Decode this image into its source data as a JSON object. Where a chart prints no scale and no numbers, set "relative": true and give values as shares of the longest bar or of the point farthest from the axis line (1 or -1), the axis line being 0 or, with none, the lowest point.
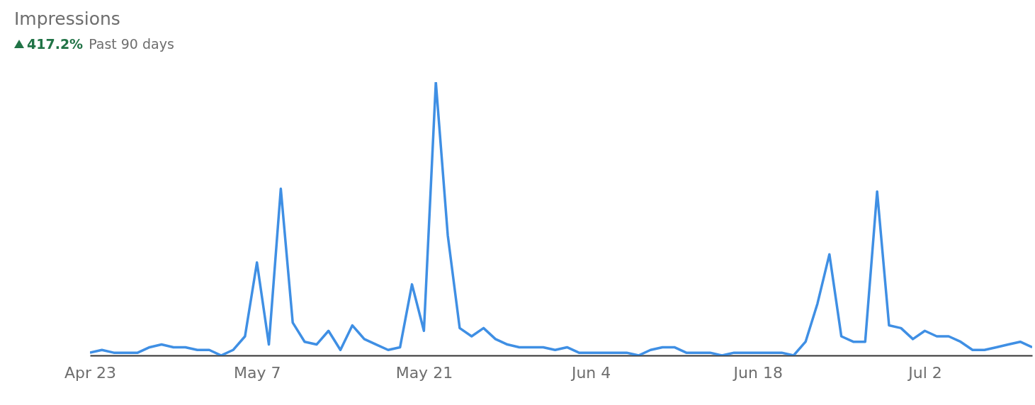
{
  "chart_data": {
    "type": "line",
    "title": "Impressions",
    "annotations": [
      "417.2%",
      "Past 90 days"
    ],
    "relative": true,
    "marker": "none",
    "xlim": [
      "--04-23",
      "--07-11"
    ],
    "xticks": [
      {
        "value": "--04-23",
        "label": "Apr 23"
      },
      {
        "value": "--05-07",
        "label": "May 7"
      },
      {
        "value": "--05-21",
        "label": "May 21"
      },
      {
        "value": "--06-04",
        "label": "Jun 4"
      },
      {
        "value": "--06-18",
        "label": "Jun 18"
      },
      {
        "value": "--07-02",
        "label": "Jul 2"
      }
    ],
    "x": [
      "--04-23",
      "--04-24",
      "--04-25",
      "--04-26",
      "--04-27",
      "--04-28",
      "--04-29",
      "--04-30",
      "--05-01",
      "--05-02",
      "--05-03",
      "--05-04",
      "--05-05",
      "--05-06",
      "--05-07",
      "--05-08",
      "--05-09",
      "--05-10",
      "--05-11",
      "--05-12",
      "--05-13",
      "--05-14",
      "--05-15",
      "--05-16",
      "--05-17",
      "--05-18",
      "--05-19",
      "--05-20",
      "--05-21",
      "--05-22",
      "--05-23",
      "--05-24",
      "--05-25",
      "--05-26",
      "--05-27",
      "--05-28",
      "--05-29",
      "--05-30",
      "--05-31",
      "--06-01",
      "--06-02",
      "--06-03",
      "--06-04",
      "--06-05",
      "--06-06",
      "--06-07",
      "--06-08",
      "--06-09",
      "--06-10",
      "--06-11",
      "--06-12",
      "--06-13",
      "--06-14",
      "--06-15",
      "--06-16",
      "--06-17",
      "--06-18",
      "--06-19",
      "--06-20",
      "--06-21",
      "--06-22",
      "--06-23",
      "--06-24",
      "--06-25",
      "--06-26",
      "--06-27",
      "--06-28",
      "--06-29",
      "--06-30",
      "--07-01",
      "--07-02",
      "--07-03",
      "--07-04",
      "--07-05",
      "--07-06",
      "--07-07",
      "--07-08",
      "--07-09",
      "--07-10",
      "--07-11"
    ],
    "series": [
      {
        "color": "#3f8fe4",
        "values": [
          0.01,
          0.02,
          0.01,
          0.01,
          0.01,
          0.03,
          0.04,
          0.03,
          0.03,
          0.02,
          0.02,
          0.0,
          0.02,
          0.07,
          0.34,
          0.04,
          0.61,
          0.12,
          0.05,
          0.04,
          0.09,
          0.02,
          0.11,
          0.06,
          0.04,
          0.02,
          0.03,
          0.26,
          0.09,
          1.0,
          0.44,
          0.1,
          0.07,
          0.1,
          0.06,
          0.04,
          0.03,
          0.03,
          0.03,
          0.02,
          0.03,
          0.01,
          0.01,
          0.01,
          0.01,
          0.01,
          0.0,
          0.02,
          0.03,
          0.03,
          0.01,
          0.01,
          0.01,
          0.0,
          0.01,
          0.01,
          0.01,
          0.01,
          0.01,
          0.0,
          0.05,
          0.19,
          0.37,
          0.07,
          0.05,
          0.05,
          0.6,
          0.11,
          0.1,
          0.06,
          0.09,
          0.07,
          0.07,
          0.05,
          0.02,
          0.02,
          0.03,
          0.04,
          0.05,
          0.03
        ]
      }
    ]
  }
}
